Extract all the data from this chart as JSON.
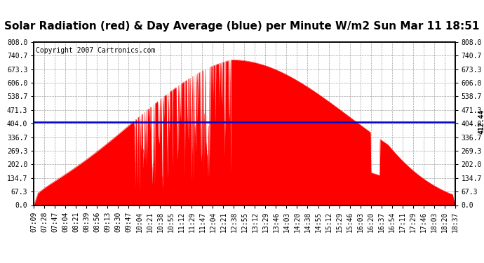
{
  "title": "Solar Radiation (red) & Day Average (blue) per Minute W/m2 Sun Mar 11 18:51",
  "copyright": "Copyright 2007 Cartronics.com",
  "avg_value": 412.44,
  "y_max": 808.0,
  "y_min": 0.0,
  "y_ticks": [
    0.0,
    67.3,
    134.7,
    202.0,
    269.3,
    336.7,
    404.0,
    471.3,
    538.7,
    606.0,
    673.3,
    740.7,
    808.0
  ],
  "fill_color": "#FF0000",
  "line_color": "#0000CC",
  "bg_color": "#FFFFFF",
  "grid_color": "#999999",
  "title_fontsize": 12,
  "copyright_fontsize": 7.5,
  "x_tick_labels": [
    "07:09",
    "07:28",
    "07:47",
    "08:04",
    "08:21",
    "08:39",
    "08:56",
    "09:13",
    "09:30",
    "09:47",
    "10:04",
    "10:21",
    "10:38",
    "10:55",
    "11:12",
    "11:29",
    "11:47",
    "12:04",
    "12:21",
    "12:38",
    "12:55",
    "13:12",
    "13:29",
    "13:46",
    "14:03",
    "14:20",
    "14:38",
    "14:55",
    "15:12",
    "15:29",
    "15:46",
    "16:03",
    "16:20",
    "16:37",
    "16:54",
    "17:11",
    "17:29",
    "17:46",
    "18:03",
    "18:20",
    "18:37"
  ]
}
